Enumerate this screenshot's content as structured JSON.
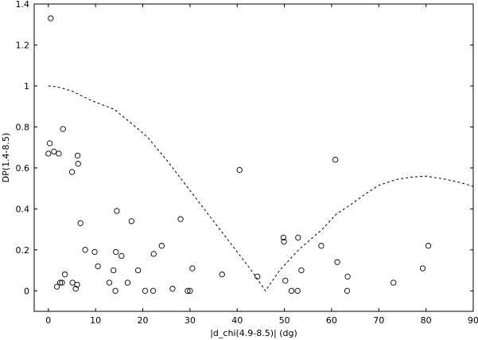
{
  "chart_data": {
    "type": "scatter",
    "xlabel": "|d_chi(4.9-8.5)|  (dg)",
    "ylabel": "DP(1.4-8.5)",
    "xlim": [
      -3,
      90
    ],
    "ylim": [
      -0.1,
      1.4
    ],
    "xticks": [
      "0",
      "10",
      "20",
      "30",
      "40",
      "50",
      "60",
      "70",
      "80",
      "90"
    ],
    "yticks": [
      "0",
      "0.2",
      "0.4",
      "0.6",
      "0.8",
      "1",
      "1.2",
      "1.4"
    ],
    "grid": false,
    "legend": "none",
    "series": [
      {
        "marker": "circle",
        "points": [
          [
            0.5,
            1.33
          ],
          [
            0.3,
            0.72
          ],
          [
            0.0,
            0.67
          ],
          [
            1.2,
            0.68
          ],
          [
            2.2,
            0.67
          ],
          [
            3.1,
            0.79
          ],
          [
            5.0,
            0.58
          ],
          [
            6.2,
            0.66
          ],
          [
            6.3,
            0.62
          ],
          [
            6.8,
            0.33
          ],
          [
            7.8,
            0.2
          ],
          [
            1.8,
            0.02
          ],
          [
            2.5,
            0.04
          ],
          [
            2.9,
            0.04
          ],
          [
            3.5,
            0.08
          ],
          [
            5.1,
            0.04
          ],
          [
            5.8,
            0.01
          ],
          [
            6.1,
            0.03
          ],
          [
            9.8,
            0.19
          ],
          [
            10.5,
            0.12
          ],
          [
            12.9,
            0.04
          ],
          [
            13.8,
            0.1
          ],
          [
            14.2,
            0.0
          ],
          [
            14.5,
            0.39
          ],
          [
            14.3,
            0.19
          ],
          [
            15.5,
            0.17
          ],
          [
            16.8,
            0.04
          ],
          [
            17.6,
            0.34
          ],
          [
            19.0,
            0.1
          ],
          [
            20.5,
            0.0
          ],
          [
            22.3,
            0.18
          ],
          [
            22.2,
            0.0
          ],
          [
            24.0,
            0.22
          ],
          [
            26.3,
            0.01
          ],
          [
            28.0,
            0.35
          ],
          [
            29.5,
            0.0
          ],
          [
            30.0,
            0.0
          ],
          [
            30.5,
            0.11
          ],
          [
            36.8,
            0.08
          ],
          [
            40.5,
            0.59
          ],
          [
            44.3,
            0.07
          ],
          [
            49.8,
            0.26
          ],
          [
            49.9,
            0.24
          ],
          [
            50.2,
            0.05
          ],
          [
            51.5,
            0.0
          ],
          [
            52.8,
            0.0
          ],
          [
            52.9,
            0.26
          ],
          [
            53.6,
            0.1
          ],
          [
            57.8,
            0.22
          ],
          [
            60.8,
            0.64
          ],
          [
            61.2,
            0.14
          ],
          [
            63.3,
            0.0
          ],
          [
            63.4,
            0.07
          ],
          [
            73.1,
            0.04
          ],
          [
            79.3,
            0.11
          ],
          [
            80.5,
            0.22
          ]
        ]
      },
      {
        "style": "dashed",
        "points": [
          [
            0,
            1.0
          ],
          [
            2,
            0.995
          ],
          [
            5,
            0.975
          ],
          [
            9,
            0.93
          ],
          [
            14,
            0.885
          ],
          [
            18,
            0.81
          ],
          [
            21,
            0.75
          ],
          [
            25,
            0.64
          ],
          [
            30,
            0.49
          ],
          [
            35,
            0.34
          ],
          [
            40,
            0.19
          ],
          [
            43,
            0.1
          ],
          [
            46,
            0.0
          ],
          [
            49,
            0.1
          ],
          [
            53,
            0.2
          ],
          [
            58,
            0.3
          ],
          [
            61,
            0.375
          ],
          [
            64,
            0.42
          ],
          [
            67,
            0.47
          ],
          [
            70,
            0.515
          ],
          [
            74,
            0.545
          ],
          [
            77,
            0.555
          ],
          [
            80,
            0.56
          ],
          [
            84,
            0.545
          ],
          [
            87,
            0.53
          ],
          [
            90,
            0.51
          ]
        ]
      }
    ]
  }
}
